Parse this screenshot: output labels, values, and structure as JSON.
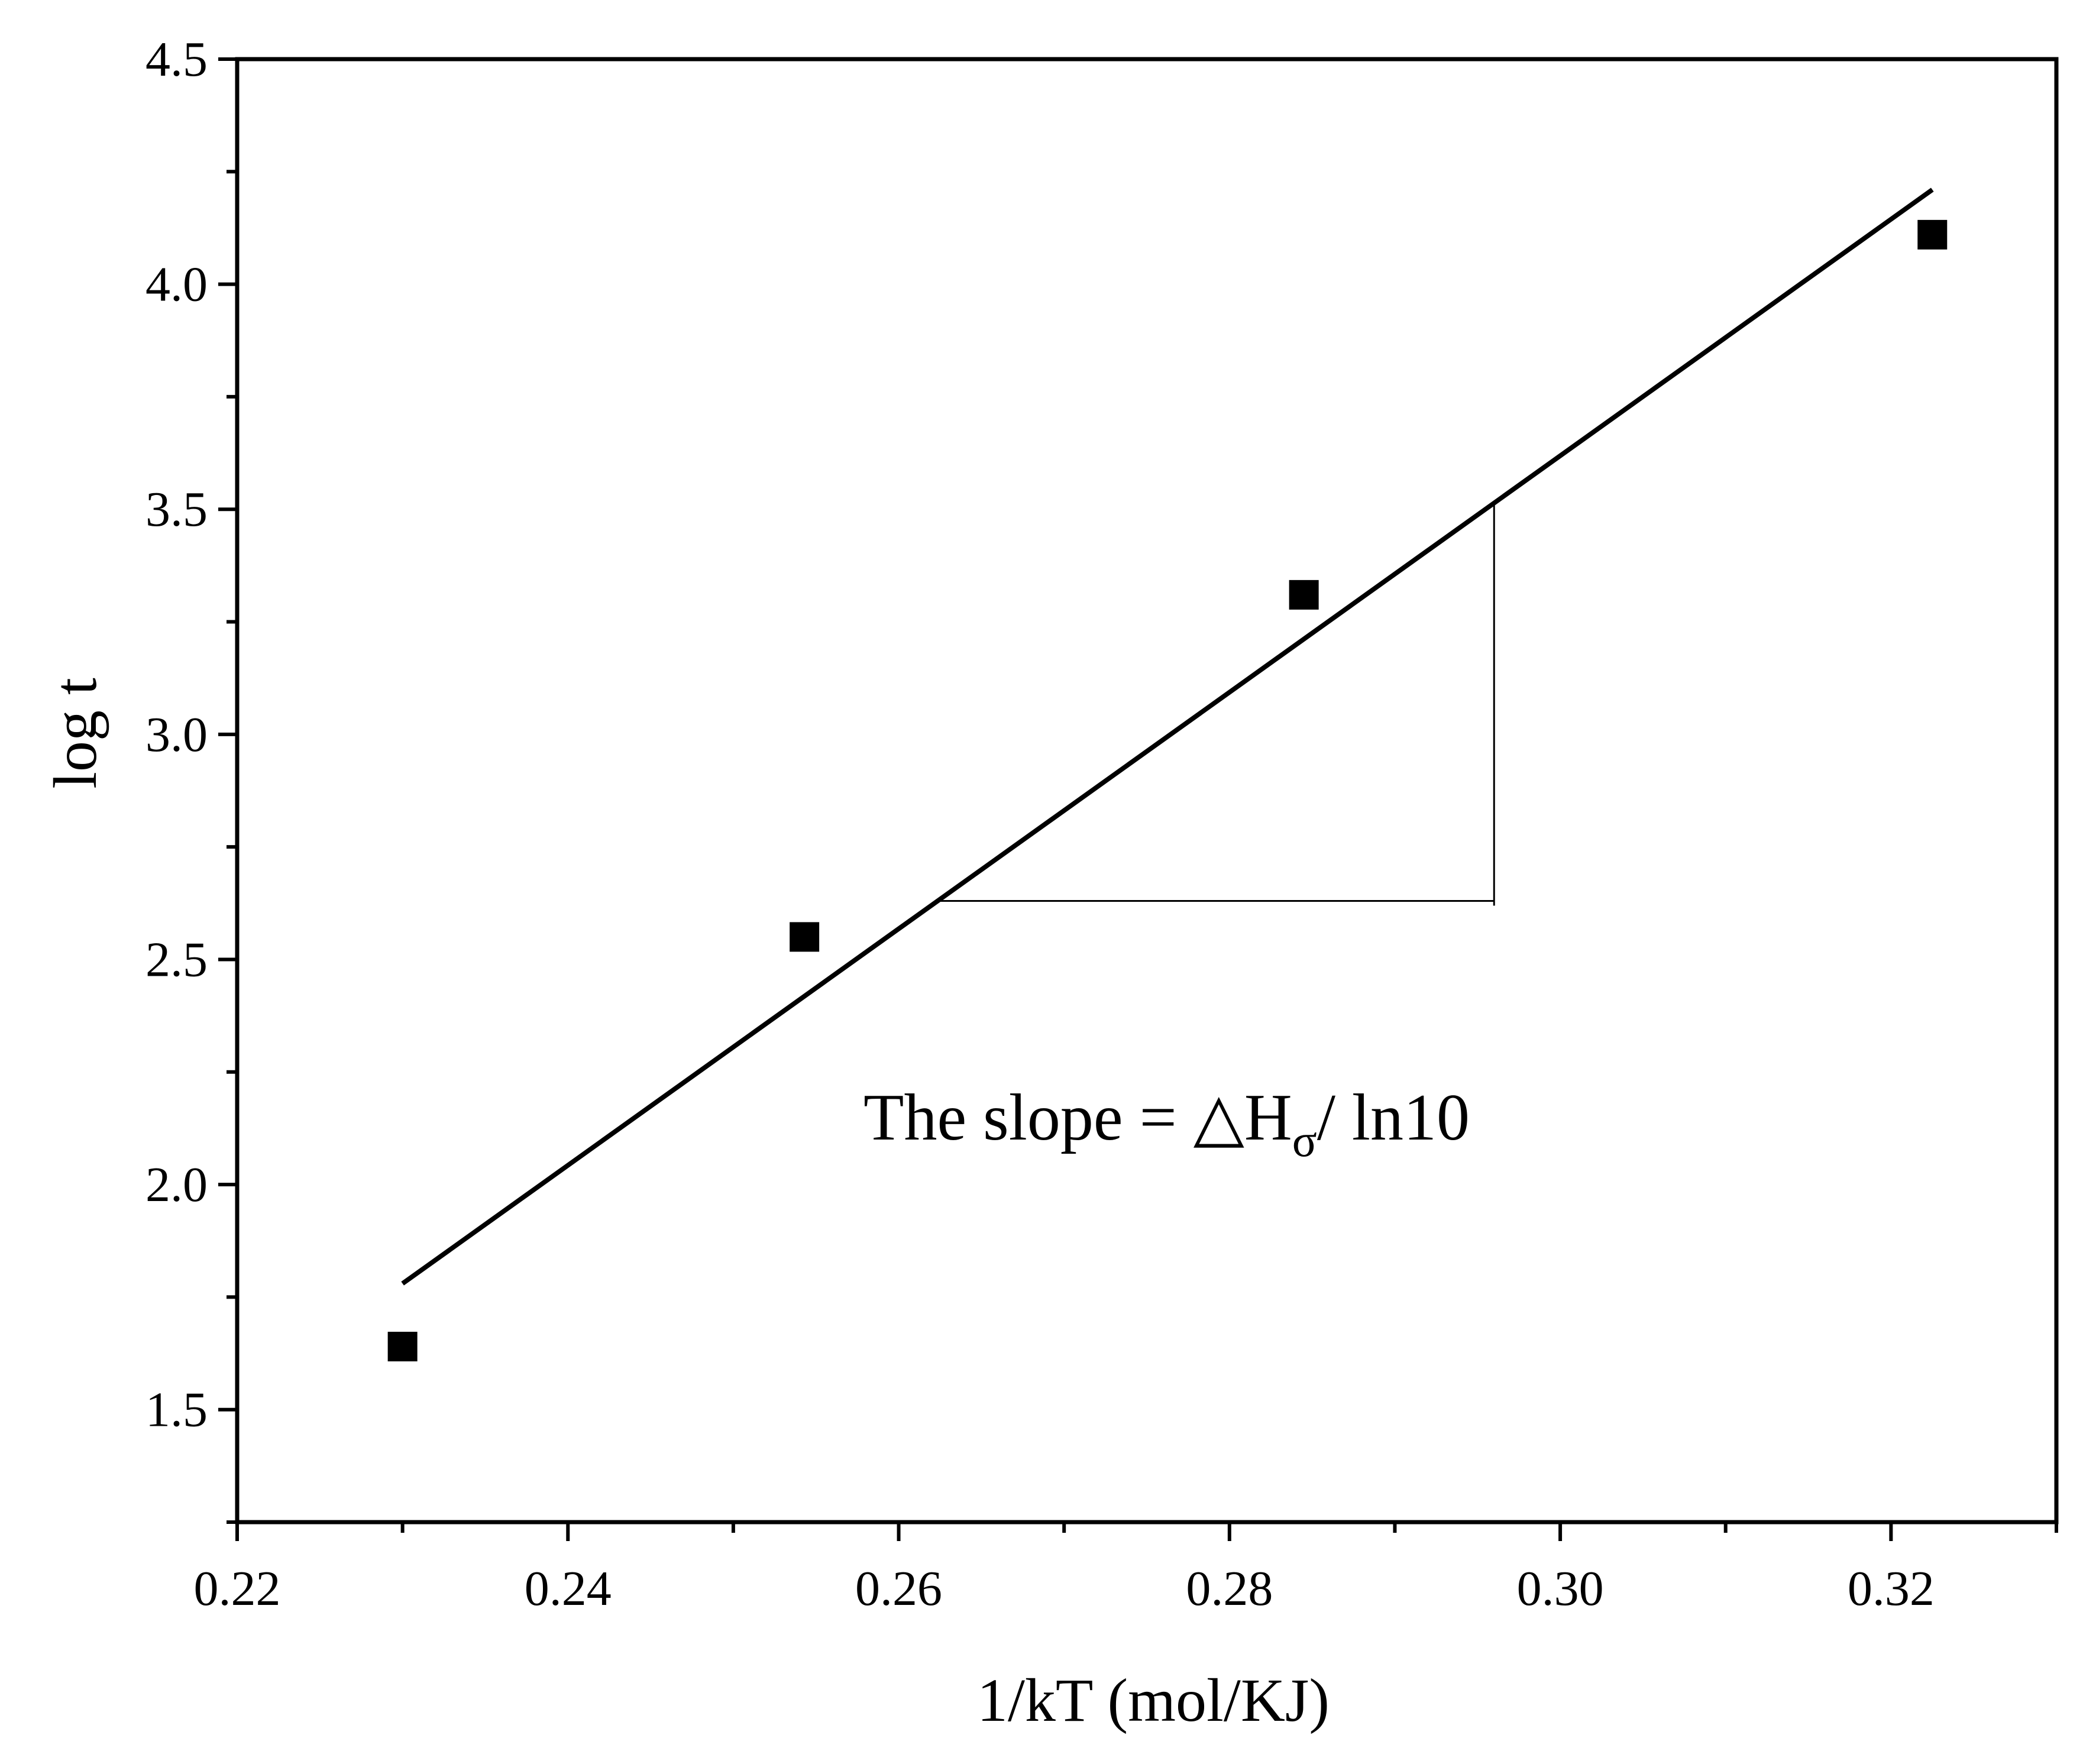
{
  "chart_data": {
    "type": "scatter",
    "title": "",
    "xlabel": "1/kT (mol/KJ)",
    "ylabel": "log t",
    "xlim": [
      0.22,
      0.33
    ],
    "ylim": [
      1.25,
      4.5
    ],
    "xticks": [
      0.22,
      0.24,
      0.26,
      0.28,
      0.3,
      0.32
    ],
    "xtick_labels": [
      "0.22",
      "0.24",
      "0.26",
      "0.28",
      "0.30",
      "0.32"
    ],
    "xminor": [
      0.23,
      0.25,
      0.27,
      0.29,
      0.31,
      0.33
    ],
    "yticks": [
      1.5,
      2.0,
      2.5,
      3.0,
      3.5,
      4.0,
      4.5
    ],
    "ytick_labels": [
      "1.5",
      "2.0",
      "2.5",
      "3.0",
      "3.5",
      "4.0",
      "4.5"
    ],
    "yminor": [
      1.25,
      1.75,
      2.25,
      2.75,
      3.25,
      3.75,
      4.25
    ],
    "grid": false,
    "series": [
      {
        "marker": "square",
        "color": "#000000",
        "x": [
          0.23,
          0.2543,
          0.2845,
          0.3225
        ],
        "y": [
          1.64,
          2.55,
          3.31,
          4.11
        ]
      }
    ],
    "fit_line": {
      "x": [
        0.23,
        0.3225
      ],
      "y": [
        1.78,
        4.21
      ],
      "color": "#000000"
    },
    "slope_triangle": {
      "x1": 0.2625,
      "x2": 0.296,
      "y_low": 2.63,
      "y_high": 3.51
    },
    "annotation": {
      "text_main": "The slope = △H",
      "text_sub": "σ",
      "text_tail": "/ ln10",
      "x": 0.2762,
      "y": 2.1
    }
  }
}
